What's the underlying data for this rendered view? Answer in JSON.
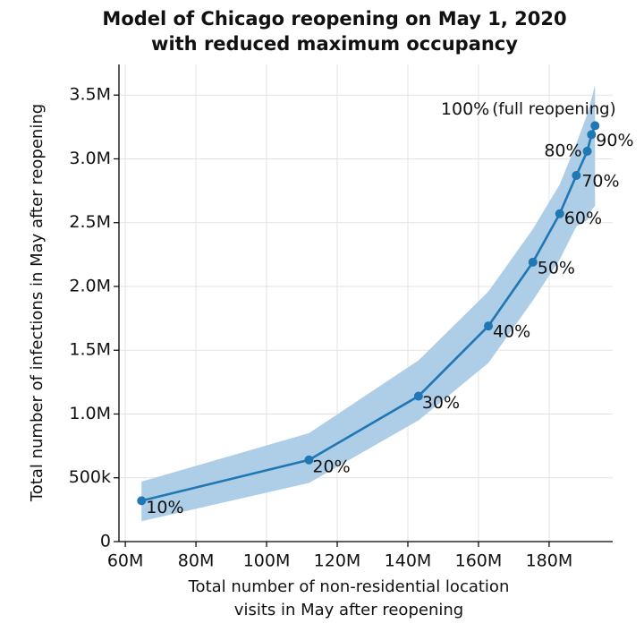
{
  "chart_data": {
    "type": "line",
    "title": [
      "Model of Chicago reopening on May 1, 2020",
      "with reduced maximum occupancy"
    ],
    "x_label": [
      "Total number of non-residential location",
      "visits in May after reopening"
    ],
    "y_label": "Total number of infections in May after reopening",
    "series": [
      {
        "color": "#1f77b4",
        "band_color": "#aecde6",
        "x": [
          64600000,
          112000000,
          143000000,
          162800000,
          175400000,
          183000000,
          187700000,
          190800000,
          192000000,
          193000000
        ],
        "values": [
          320000,
          640000,
          1140000,
          1690000,
          2190000,
          2570000,
          2870000,
          3060000,
          3190000,
          3260000
        ],
        "lower": [
          160000,
          460000,
          950000,
          1400000,
          1890000,
          2210000,
          2470000,
          2520000,
          2600000,
          2630000
        ],
        "upper": [
          470000,
          850000,
          1420000,
          1960000,
          2450000,
          2800000,
          3120000,
          3350000,
          3470000,
          3580000
        ],
        "point_labels": [
          "10%",
          "20%",
          "30%",
          "40%",
          "50%",
          "60%",
          "70%",
          "80%",
          "90%",
          "100%"
        ]
      }
    ],
    "annotation": "(full reopening)",
    "xlim": [
      58200000,
      198000000
    ],
    "xticks": [
      {
        "value": 60000000,
        "label": "60M"
      },
      {
        "value": 80000000,
        "label": "80M"
      },
      {
        "value": 100000000,
        "label": "100M"
      },
      {
        "value": 120000000,
        "label": "120M"
      },
      {
        "value": 140000000,
        "label": "140M"
      },
      {
        "value": 160000000,
        "label": "160M"
      },
      {
        "value": 180000000,
        "label": "180M"
      }
    ],
    "ylim": [
      0,
      3740000
    ],
    "yticks": [
      0,
      {
        "value": 500000,
        "label": "500k"
      },
      {
        "value": 1000000,
        "label": "1.0M"
      },
      {
        "value": 1500000,
        "label": "1.5M"
      },
      {
        "value": 2000000,
        "label": "2.0M"
      },
      {
        "value": 2500000,
        "label": "2.5M"
      },
      {
        "value": 3000000,
        "label": "3.0M"
      },
      {
        "value": 3500000,
        "label": "3.5M"
      }
    ],
    "grid": true
  }
}
